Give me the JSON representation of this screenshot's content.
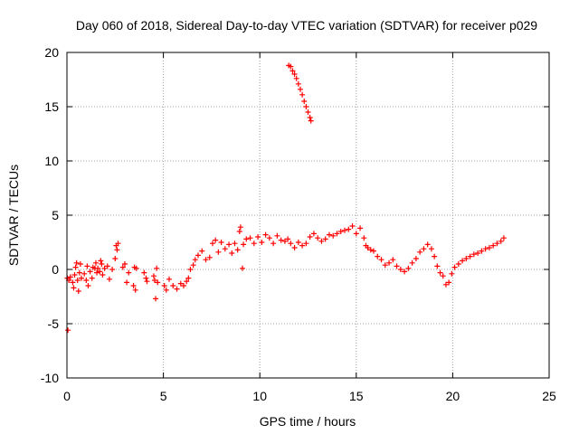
{
  "chart_data": {
    "type": "scatter",
    "title": "Day 060 of 2018, Sidereal Day-to-day VTEC variation (SDTVAR) for receiver p029",
    "xlabel": "GPS time / hours",
    "ylabel": "SDTVAR / TECUs",
    "xlim": [
      0,
      25
    ],
    "ylim": [
      -10,
      20
    ],
    "xticks": [
      0,
      5,
      10,
      15,
      20,
      25
    ],
    "yticks": [
      -10,
      -5,
      0,
      5,
      10,
      15,
      20
    ],
    "grid": true,
    "marker": "+",
    "series": [
      {
        "name": "SDTVAR",
        "color": "#ff0000",
        "points": [
          [
            0.02,
            -0.8
          ],
          [
            0.05,
            -5.6
          ],
          [
            0.1,
            -1.0
          ],
          [
            0.18,
            -0.7
          ],
          [
            0.3,
            -1.2
          ],
          [
            0.35,
            -1.7
          ],
          [
            0.4,
            -0.5
          ],
          [
            0.45,
            0.2
          ],
          [
            0.5,
            0.6
          ],
          [
            0.55,
            -1.0
          ],
          [
            0.6,
            -2.0
          ],
          [
            0.65,
            -0.3
          ],
          [
            0.7,
            0.5
          ],
          [
            0.75,
            -0.8
          ],
          [
            0.9,
            -0.4
          ],
          [
            1.0,
            -1.0
          ],
          [
            1.05,
            0.3
          ],
          [
            1.1,
            -1.5
          ],
          [
            1.2,
            -0.2
          ],
          [
            1.3,
            -0.8
          ],
          [
            1.35,
            0.2
          ],
          [
            1.45,
            0.1
          ],
          [
            1.5,
            0.6
          ],
          [
            1.55,
            -0.3
          ],
          [
            1.6,
            0.1
          ],
          [
            1.7,
            -0.2
          ],
          [
            1.75,
            0.8
          ],
          [
            1.8,
            0.5
          ],
          [
            1.85,
            -0.5
          ],
          [
            1.95,
            0.1
          ],
          [
            2.1,
            0.3
          ],
          [
            2.2,
            -0.9
          ],
          [
            2.35,
            0.0
          ],
          [
            2.5,
            1.0
          ],
          [
            2.55,
            2.2
          ],
          [
            2.6,
            1.8
          ],
          [
            2.65,
            2.4
          ],
          [
            2.9,
            0.2
          ],
          [
            3.0,
            0.5
          ],
          [
            3.1,
            -1.2
          ],
          [
            3.2,
            -0.3
          ],
          [
            3.45,
            -1.5
          ],
          [
            3.5,
            0.2
          ],
          [
            3.55,
            -1.9
          ],
          [
            3.6,
            0.1
          ],
          [
            4.0,
            -0.3
          ],
          [
            4.1,
            -0.8
          ],
          [
            4.15,
            -1.1
          ],
          [
            4.5,
            -0.6
          ],
          [
            4.55,
            -1.0
          ],
          [
            4.6,
            -2.7
          ],
          [
            4.65,
            0.1
          ],
          [
            4.7,
            -1.2
          ],
          [
            5.05,
            -1.5
          ],
          [
            5.15,
            -1.9
          ],
          [
            5.3,
            -0.9
          ],
          [
            5.5,
            -1.5
          ],
          [
            5.7,
            -1.8
          ],
          [
            5.9,
            -1.3
          ],
          [
            6.05,
            -1.5
          ],
          [
            6.2,
            -1.1
          ],
          [
            6.3,
            -0.8
          ],
          [
            6.4,
            0.0
          ],
          [
            6.55,
            0.4
          ],
          [
            6.65,
            0.9
          ],
          [
            6.8,
            1.3
          ],
          [
            7.0,
            1.7
          ],
          [
            7.2,
            0.9
          ],
          [
            7.4,
            1.1
          ],
          [
            7.55,
            2.4
          ],
          [
            7.7,
            2.7
          ],
          [
            7.85,
            1.6
          ],
          [
            8.0,
            2.5
          ],
          [
            8.2,
            1.9
          ],
          [
            8.4,
            2.3
          ],
          [
            8.55,
            1.5
          ],
          [
            8.7,
            2.4
          ],
          [
            8.85,
            1.8
          ],
          [
            8.95,
            3.5
          ],
          [
            9.0,
            3.9
          ],
          [
            9.1,
            0.1
          ],
          [
            9.15,
            2.3
          ],
          [
            9.3,
            2.8
          ],
          [
            9.5,
            2.9
          ],
          [
            9.7,
            2.4
          ],
          [
            9.9,
            3.0
          ],
          [
            10.1,
            2.5
          ],
          [
            10.3,
            3.2
          ],
          [
            10.5,
            2.9
          ],
          [
            10.7,
            2.4
          ],
          [
            10.9,
            3.1
          ],
          [
            11.1,
            2.7
          ],
          [
            11.3,
            2.6
          ],
          [
            11.45,
            2.8
          ],
          [
            11.6,
            2.4
          ],
          [
            11.8,
            2.0
          ],
          [
            12.0,
            2.5
          ],
          [
            12.2,
            2.2
          ],
          [
            12.4,
            2.4
          ],
          [
            12.6,
            3.0
          ],
          [
            12.8,
            3.3
          ],
          [
            13.0,
            2.9
          ],
          [
            13.2,
            2.6
          ],
          [
            13.4,
            2.8
          ],
          [
            13.6,
            3.2
          ],
          [
            13.8,
            3.1
          ],
          [
            14.0,
            3.3
          ],
          [
            14.2,
            3.5
          ],
          [
            14.4,
            3.6
          ],
          [
            14.6,
            3.7
          ],
          [
            14.8,
            4.0
          ],
          [
            15.0,
            3.3
          ],
          [
            15.2,
            3.8
          ],
          [
            15.4,
            2.9
          ],
          [
            15.5,
            2.2
          ],
          [
            15.6,
            2.0
          ],
          [
            15.75,
            1.8
          ],
          [
            15.9,
            1.7
          ],
          [
            16.1,
            1.2
          ],
          [
            16.3,
            0.9
          ],
          [
            16.5,
            0.4
          ],
          [
            16.7,
            0.6
          ],
          [
            16.9,
            0.9
          ],
          [
            17.1,
            0.3
          ],
          [
            17.3,
            0.0
          ],
          [
            17.5,
            -0.2
          ],
          [
            17.7,
            0.1
          ],
          [
            17.9,
            0.6
          ],
          [
            18.1,
            1.0
          ],
          [
            18.3,
            1.6
          ],
          [
            18.5,
            1.9
          ],
          [
            18.7,
            2.3
          ],
          [
            18.9,
            1.9
          ],
          [
            19.05,
            1.2
          ],
          [
            19.2,
            0.3
          ],
          [
            19.35,
            -0.3
          ],
          [
            19.5,
            -0.6
          ],
          [
            19.65,
            -1.4
          ],
          [
            19.8,
            -1.2
          ],
          [
            19.95,
            -0.4
          ],
          [
            20.1,
            0.2
          ],
          [
            20.3,
            0.5
          ],
          [
            20.5,
            0.8
          ],
          [
            20.7,
            1.0
          ],
          [
            20.9,
            1.2
          ],
          [
            21.1,
            1.4
          ],
          [
            21.3,
            1.5
          ],
          [
            21.5,
            1.7
          ],
          [
            21.7,
            1.9
          ],
          [
            21.9,
            2.0
          ],
          [
            22.1,
            2.2
          ],
          [
            22.3,
            2.4
          ],
          [
            22.5,
            2.6
          ],
          [
            22.65,
            2.9
          ],
          [
            11.5,
            18.8
          ],
          [
            11.6,
            18.7
          ],
          [
            11.7,
            18.3
          ],
          [
            11.8,
            18.0
          ],
          [
            11.9,
            17.6
          ],
          [
            12.0,
            17.1
          ],
          [
            12.1,
            16.6
          ],
          [
            12.2,
            16.1
          ],
          [
            12.3,
            15.5
          ],
          [
            12.4,
            15.0
          ],
          [
            12.5,
            14.5
          ],
          [
            12.6,
            14.0
          ],
          [
            12.65,
            13.7
          ]
        ]
      }
    ]
  }
}
